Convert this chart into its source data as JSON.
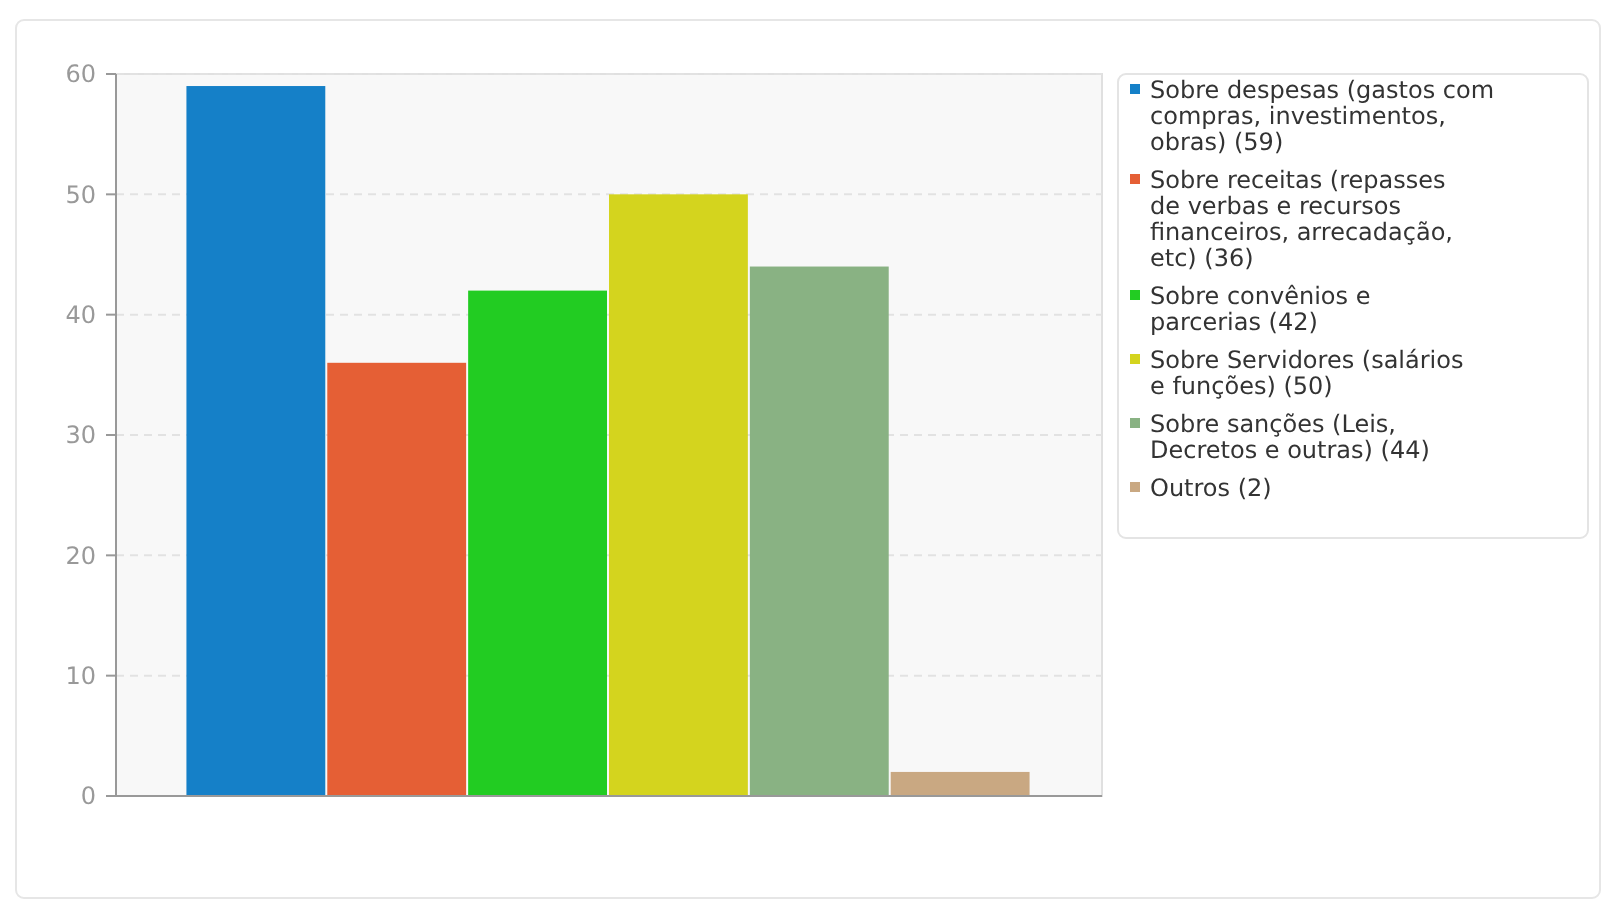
{
  "chart_data": {
    "type": "bar",
    "categories": [
      null
    ],
    "ylim": [
      0,
      60
    ],
    "yticks": [
      0,
      10,
      20,
      30,
      40,
      50,
      60
    ],
    "grid": "y",
    "legend": "right",
    "series": [
      {
        "name": "Sobre despesas (gastos com compras, investimentos, obras) (59)",
        "color": "#1580c8",
        "values": [
          59
        ]
      },
      {
        "name": "Sobre receitas (repasses de verbas e recursos financeiros, arrecadação, etc) (36)",
        "color": "#e55f35",
        "values": [
          36
        ]
      },
      {
        "name": "Sobre convênios e parcerias (42)",
        "color": "#22cc22",
        "values": [
          42
        ]
      },
      {
        "name": "Sobre Servidores (salários e funções) (50)",
        "color": "#d4d41e",
        "values": [
          50
        ]
      },
      {
        "name": "Sobre sanções (Leis, Decretos e outras) (44)",
        "color": "#89b283",
        "values": [
          44
        ]
      },
      {
        "name": "Outros (2)",
        "color": "#c9a882",
        "values": [
          2
        ]
      }
    ]
  }
}
